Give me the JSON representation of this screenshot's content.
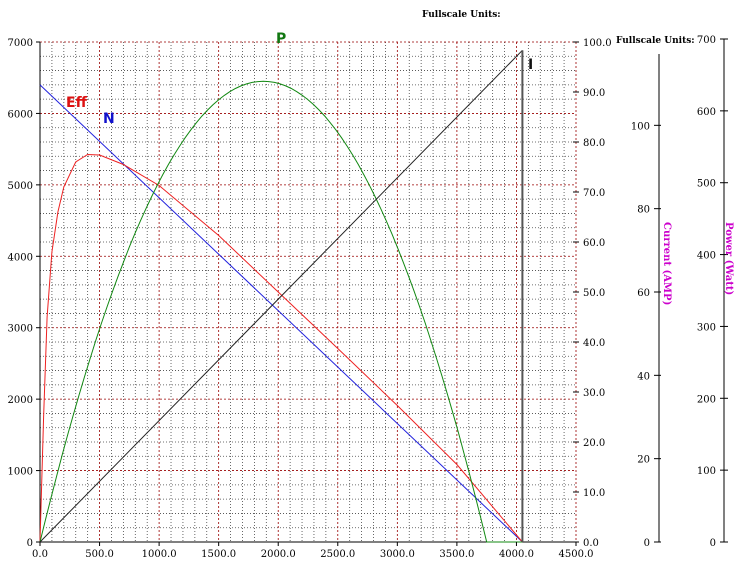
{
  "header": {
    "fullscale_top": "Fullscale Units:",
    "fullscale_right": "Fullscale Units:"
  },
  "chart_data": {
    "type": "line",
    "xlim": [
      0,
      4500
    ],
    "x_ticks": [
      "0.0",
      "500.0",
      "1000.0",
      "1500.0",
      "2000.0",
      "2500.0",
      "3000.0",
      "3500.0",
      "4000.0",
      "4500.0"
    ],
    "left_axis": {
      "ylim": [
        0,
        7000
      ],
      "ticks": [
        "0",
        "1000",
        "2000",
        "3000",
        "4000",
        "5000",
        "6000",
        "7000"
      ]
    },
    "percent_axis": {
      "ylim": [
        0,
        100
      ],
      "ticks": [
        "0.0",
        "10.0",
        "20.0",
        "30.0",
        "40.0",
        "50.0",
        "60.0",
        "70.0",
        "80.0",
        "90.0",
        "100.0"
      ]
    },
    "current_axis": {
      "label": "Current (AMP)",
      "ylim": [
        0,
        120
      ],
      "ticks": [
        "0",
        "20",
        "40",
        "60",
        "80",
        "100"
      ]
    },
    "power_axis": {
      "label": "Power (Watt)",
      "ylim": [
        0,
        700
      ],
      "ticks": [
        "0",
        "100",
        "200",
        "300",
        "400",
        "500",
        "600",
        "700"
      ]
    },
    "grid": true,
    "series": [
      {
        "name": "N",
        "color": "#2222dd",
        "axis": "left",
        "x": [
          0,
          4050
        ],
        "y": [
          6400,
          0
        ]
      },
      {
        "name": "Eff",
        "color": "#ee2222",
        "axis": "percent",
        "x": [
          0,
          30,
          60,
          100,
          150,
          200,
          300,
          400,
          500,
          700,
          1000,
          1500,
          2000,
          2500,
          3000,
          3500,
          4050
        ],
        "y": [
          0,
          25,
          45,
          58,
          66,
          71,
          76,
          77.5,
          77.4,
          75.5,
          71.3,
          61.3,
          50,
          38.7,
          27.3,
          15.5,
          0
        ]
      },
      {
        "name": "P",
        "color": "#118811",
        "axis": "power",
        "x": [
          0,
          250,
          500,
          750,
          1000,
          1250,
          1500,
          1750,
          2000,
          2250,
          2500,
          2750,
          3000,
          3250,
          3500,
          3750,
          4050
        ],
        "y": [
          0,
          162,
          300,
          415,
          507,
          576,
          622,
          645,
          645,
          622,
          576,
          507,
          415,
          300,
          162,
          0,
          0
        ]
      },
      {
        "name": "I",
        "color": "#222222",
        "axis": "current",
        "x": [
          0,
          4050
        ],
        "y": [
          0,
          118
        ]
      }
    ]
  }
}
